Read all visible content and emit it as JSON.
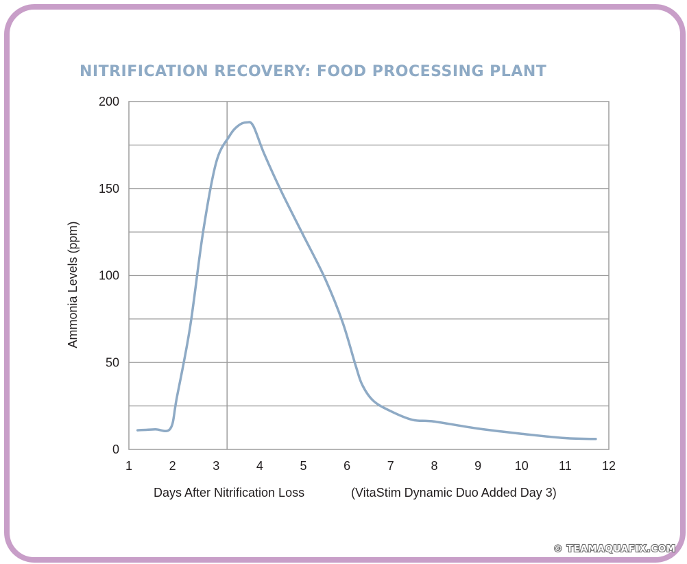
{
  "chart_data": {
    "type": "line",
    "title": "NITRIFICATION RECOVERY: FOOD PROCESSING PLANT",
    "xlabel": "Days After Nitrification Loss",
    "annotation": "(VitaStim Dynamic Duo Added Day 3)",
    "ylabel": "Ammonia Levels (ppm)",
    "xlim": [
      1,
      12
    ],
    "ylim": [
      0,
      200
    ],
    "x_ticks": [
      "1",
      "2",
      "3",
      "4",
      "5",
      "6",
      "7",
      "8",
      "9",
      "10",
      "11",
      "12"
    ],
    "y_ticks": [
      "0",
      "50",
      "100",
      "150",
      "200"
    ],
    "grid": true,
    "marker_day": 3.25,
    "series": [
      {
        "color": "#8eaac5",
        "x": [
          1.2,
          1.6,
          1.95,
          2.1,
          2.4,
          2.7,
          3.0,
          3.3,
          3.5,
          3.7,
          3.85,
          4.1,
          4.5,
          5.0,
          5.5,
          5.9,
          6.2,
          6.35,
          6.6,
          7.0,
          7.5,
          8.0,
          9.0,
          10.0,
          11.0,
          11.7
        ],
        "y": [
          11,
          11.5,
          12,
          30,
          70,
          125,
          165,
          180,
          186,
          188,
          186,
          170,
          148,
          123,
          98,
          73,
          48,
          37,
          28,
          22,
          17,
          16,
          12,
          9,
          6.5,
          6
        ]
      }
    ]
  },
  "watermark": "© TEAMAQUAFIX.COM"
}
